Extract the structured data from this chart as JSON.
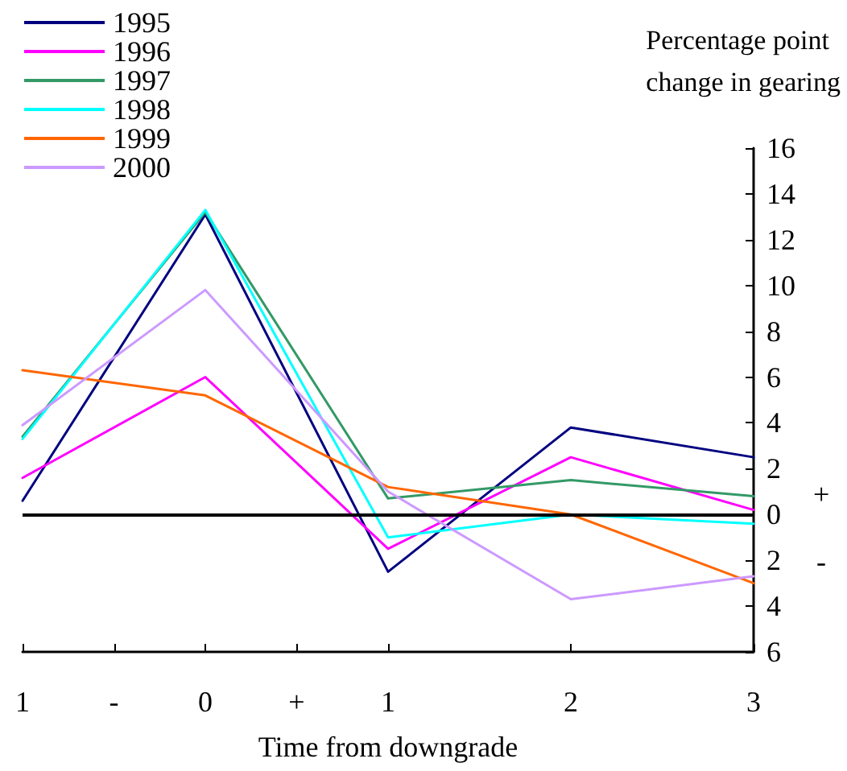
{
  "chart_data": {
    "type": "line",
    "xlabel": "Time from downgrade",
    "ylabel": "Percentage point\nchange in gearing",
    "x": [
      -1,
      0,
      1,
      2,
      3
    ],
    "xlim": [
      -1,
      3
    ],
    "xticks": [
      {
        "value": -1,
        "label": "1"
      },
      {
        "value": -0.5,
        "label": "-"
      },
      0,
      {
        "value": 0.5,
        "label": "+"
      },
      1,
      2,
      3
    ],
    "ylim": [
      -6,
      16
    ],
    "yticks": [
      {
        "value": -6,
        "label": "6"
      },
      {
        "value": -4,
        "label": "4"
      },
      {
        "value": -2,
        "label": "2"
      },
      0,
      2,
      4,
      6,
      8,
      10,
      12,
      14,
      16
    ],
    "annotations": [
      "+",
      "-"
    ],
    "series": [
      {
        "name": "1995",
        "color": "#000080",
        "values": [
          0.6,
          13.1,
          -2.5,
          3.8,
          2.5
        ]
      },
      {
        "name": "1996",
        "color": "#ff00ff",
        "values": [
          1.6,
          6.0,
          -1.5,
          2.5,
          0.2
        ]
      },
      {
        "name": "1997",
        "color": "#339966",
        "values": [
          3.4,
          13.2,
          0.7,
          1.5,
          0.8
        ]
      },
      {
        "name": "1998",
        "color": "#00ffff",
        "values": [
          3.3,
          13.3,
          -1.0,
          0,
          -0.4
        ]
      },
      {
        "name": "1999",
        "color": "#ff6600",
        "values": [
          6.3,
          5.2,
          1.2,
          0,
          -3.0
        ]
      },
      {
        "name": "2000",
        "color": "#cc99ff",
        "values": [
          3.9,
          9.8,
          1.0,
          -3.7,
          -2.7
        ]
      }
    ],
    "ref_lines": [
      {
        "axis": "y",
        "value": 0,
        "color": "#000000"
      }
    ],
    "legend": "top left",
    "grid": false,
    "marker": "none",
    "line_style": "solid"
  }
}
